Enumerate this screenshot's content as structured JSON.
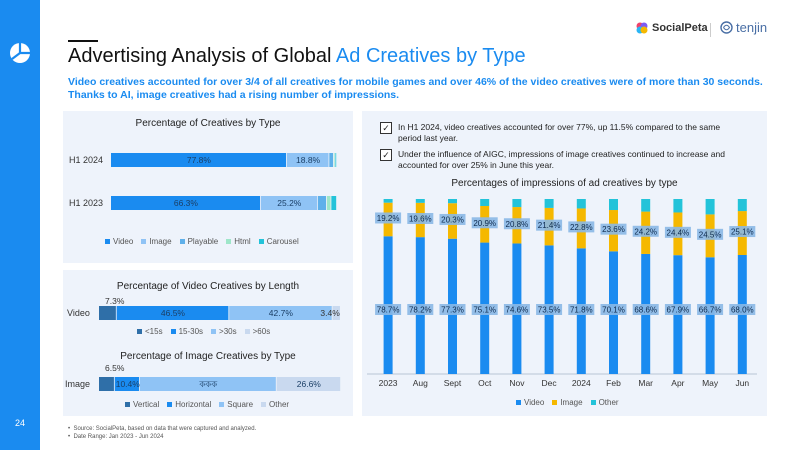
{
  "header": {
    "title_main": "Advertising Analysis of Global ",
    "title_highlight": "Ad Creatives by Type",
    "subtitle": "Video creatives accounted for over 3/4 of all creatives for mobile games and over 46% of the video creatives were of more than 30 seconds. Thanks to AI, image creatives had a rising number of impressions.",
    "brand_socialpeta": "SocialPeta",
    "brand_tenjin": "tenjin",
    "page_number": "24"
  },
  "notes": [
    "In H1 2024, video creatives accounted for over 77%, up 11.5% compared to the same period last year.",
    "Under the influence of AIGC, impressions of image creatives continued to increase and accounted for over 25% in June this year."
  ],
  "footnotes": [
    "Source: SocialPeta, based on data that were captured and analyzed.",
    "Date Range: Jan 2023 - Jun 2024"
  ],
  "colors": {
    "accent": "#1a8bf0",
    "video": "#1a8bf0",
    "image": "#8fc3f5",
    "playable": "#5fb0ea",
    "html": "#9ee6c9",
    "carousel": "#23c3d9",
    "len_lt15": "#2f6fa8",
    "len_15_30": "#1a8bf0",
    "len_30_60": "#8fc3f5",
    "len_gt60": "#c9d9ef",
    "img_vertical": "#2f6fa8",
    "img_horizontal": "#1a8bf0",
    "img_square": "#8fc3f5",
    "img_other": "#c9d9ef",
    "imp_video": "#1a8bf0",
    "imp_image": "#f5b800",
    "imp_other": "#23c3d9"
  },
  "chart_data": [
    {
      "type": "bar",
      "orientation": "horizontal-stacked",
      "title": "Percentage of Creatives by Type",
      "categories": [
        "H1 2024",
        "H1 2023"
      ],
      "series": [
        {
          "name": "Video",
          "values": [
            77.8,
            66.3
          ],
          "labels": [
            "77.8%",
            "66.3%"
          ]
        },
        {
          "name": "Image",
          "values": [
            18.8,
            25.2
          ],
          "labels": [
            "18.8%",
            "25.2%"
          ]
        },
        {
          "name": "Playable",
          "values": [
            2.0,
            4.0
          ],
          "labels": [
            "",
            ""
          ]
        },
        {
          "name": "Html",
          "values": [
            0.7,
            2.0
          ],
          "labels": [
            "",
            ""
          ]
        },
        {
          "name": "Carousel",
          "values": [
            0.7,
            2.5
          ],
          "labels": [
            "",
            ""
          ]
        }
      ]
    },
    {
      "type": "bar",
      "orientation": "horizontal-stacked",
      "title": "Percentage of Video Creatives by Length",
      "categories": [
        "Video"
      ],
      "series": [
        {
          "name": "<15s",
          "values": [
            7.3
          ],
          "labels": [
            "7.3%"
          ]
        },
        {
          "name": "15-30s",
          "values": [
            46.5
          ],
          "labels": [
            "46.5%"
          ]
        },
        {
          "name": ">30s",
          "values": [
            42.7
          ],
          "labels": [
            "42.7%"
          ]
        },
        {
          "name": ">60s",
          "values": [
            3.4
          ],
          "labels": [
            "3.4%"
          ]
        }
      ]
    },
    {
      "type": "bar",
      "orientation": "horizontal-stacked",
      "title": "Percentage of Image Creatives by Type",
      "categories": [
        "Image"
      ],
      "series": [
        {
          "name": "Vertical",
          "values": [
            6.5
          ],
          "labels": [
            "6.5%"
          ]
        },
        {
          "name": "Horizontal",
          "values": [
            10.4
          ],
          "labels": [
            "10.4%"
          ]
        },
        {
          "name": "Square",
          "values": [
            56.5
          ],
          "labels": [
            "ককক"
          ]
        },
        {
          "name": "Other",
          "values": [
            26.6
          ],
          "labels": [
            "26.6%"
          ]
        }
      ]
    },
    {
      "type": "bar",
      "orientation": "vertical-stacked",
      "title": "Percentages of impressions of ad creatives by type",
      "categories": [
        "2023",
        "Aug",
        "Sept",
        "Oct",
        "Nov",
        "Dec",
        "2024",
        "Feb",
        "Mar",
        "Apr",
        "May",
        "Jun"
      ],
      "series": [
        {
          "name": "Video",
          "values": [
            78.7,
            78.2,
            77.3,
            75.1,
            74.6,
            73.5,
            71.8,
            70.1,
            68.6,
            67.9,
            66.7,
            68.0
          ],
          "labels": [
            "78.7%",
            "78.2%",
            "77.3%",
            "75.1%",
            "74.6%",
            "73.5%",
            "71.8%",
            "70.1%",
            "68.6%",
            "67.9%",
            "66.7%",
            "68.0%"
          ]
        },
        {
          "name": "Image",
          "values": [
            19.2,
            19.6,
            20.3,
            20.9,
            20.8,
            21.4,
            22.8,
            23.6,
            24.2,
            24.4,
            24.5,
            25.1
          ],
          "labels": [
            "19.2%",
            "19.6%",
            "20.3%",
            "20.9%",
            "20.8%",
            "21.4%",
            "22.8%",
            "23.6%",
            "24.2%",
            "24.4%",
            "24.5%",
            "25.1%"
          ]
        },
        {
          "name": "Other",
          "values": [
            2.1,
            2.2,
            2.4,
            4.0,
            4.6,
            5.1,
            5.4,
            6.3,
            7.2,
            7.7,
            8.8,
            6.9
          ]
        }
      ]
    }
  ]
}
